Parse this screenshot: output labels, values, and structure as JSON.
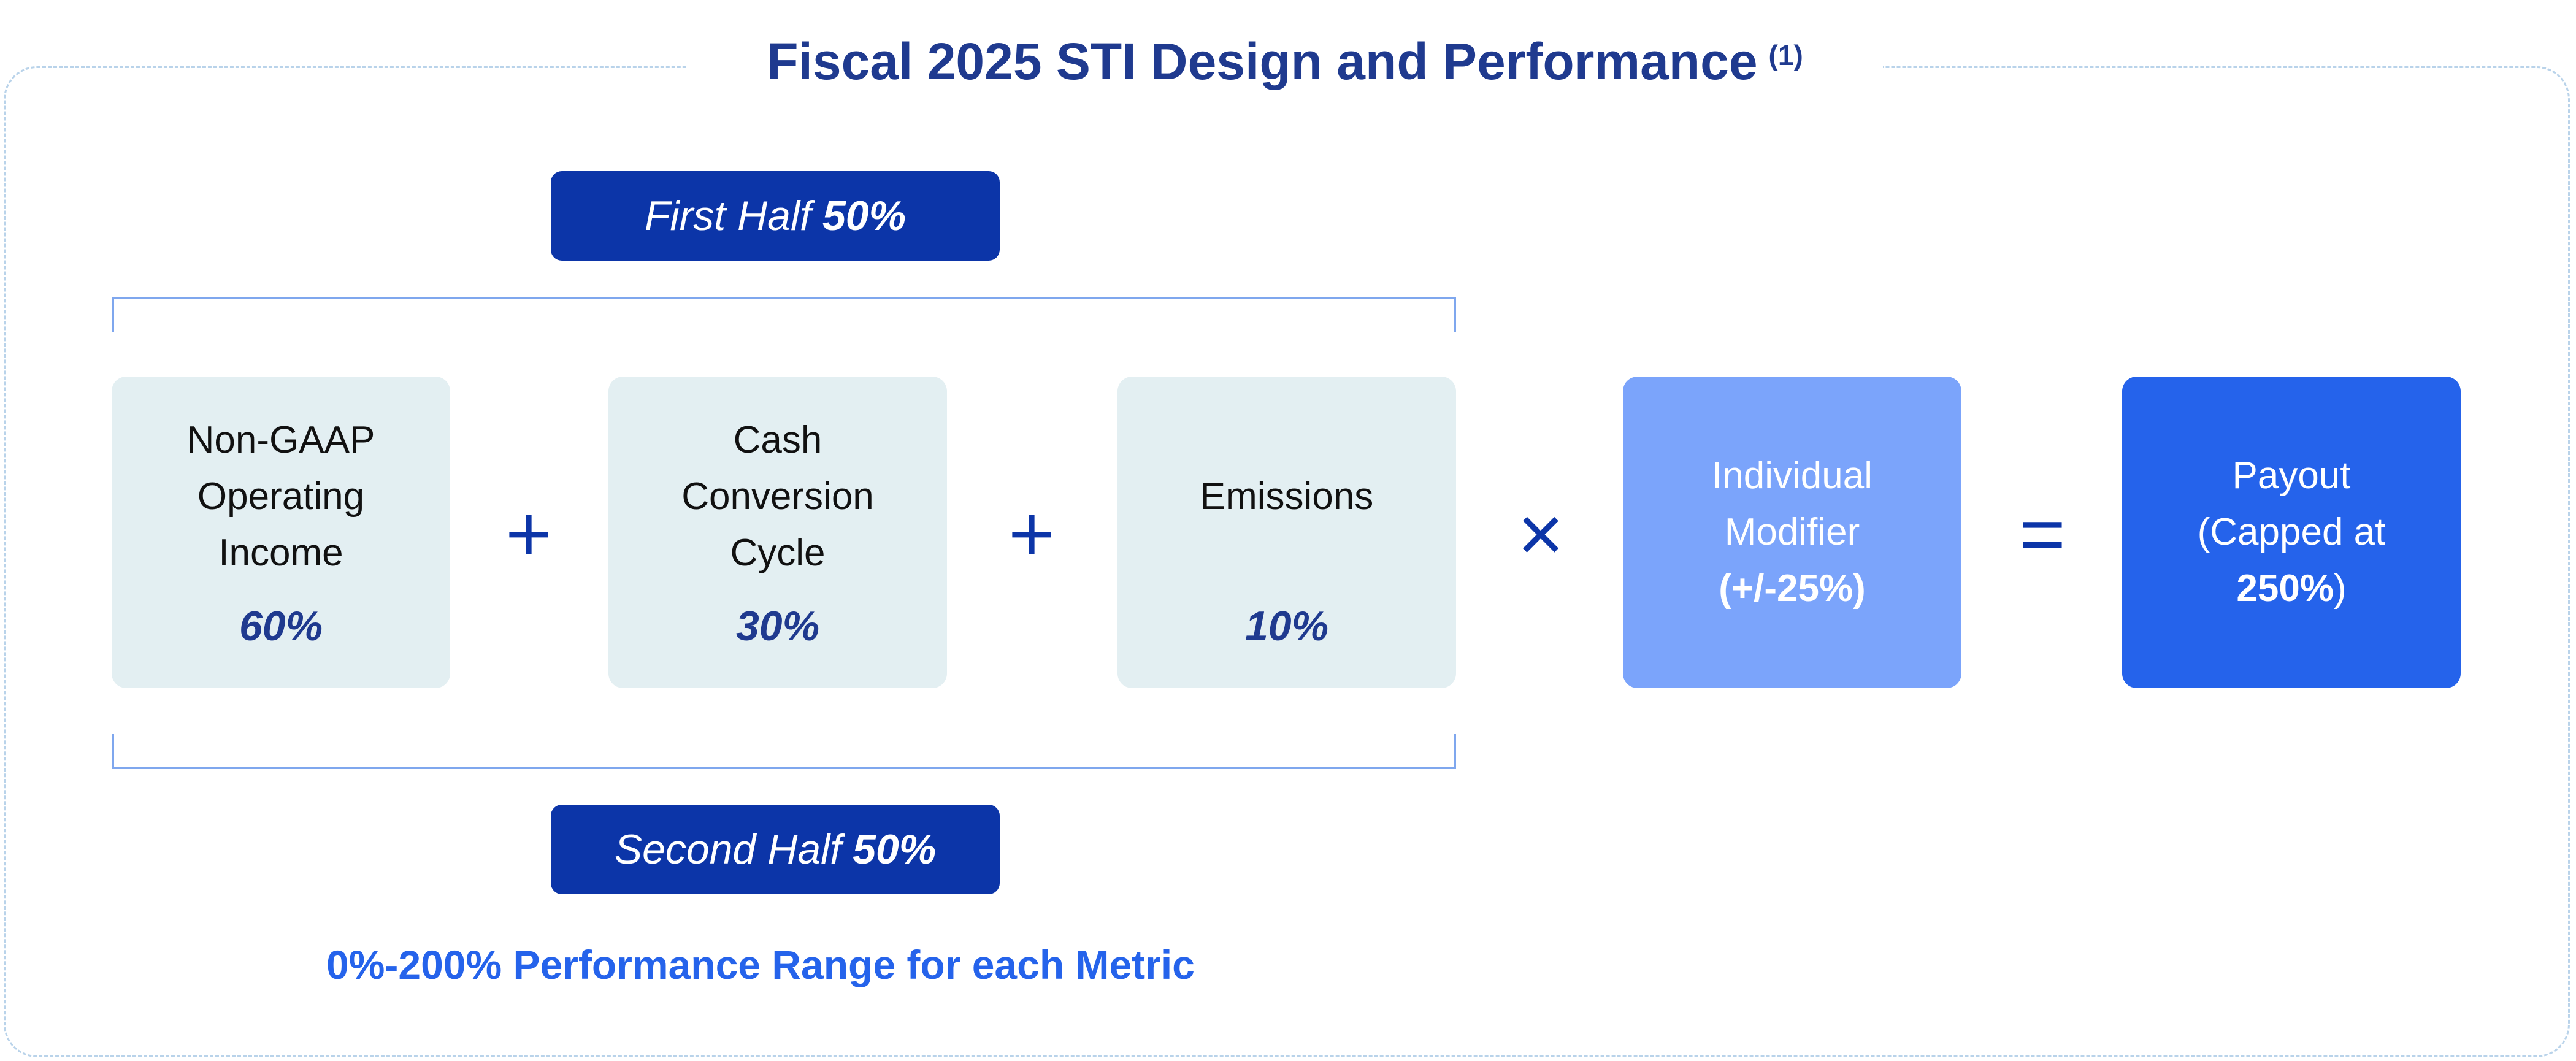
{
  "title": {
    "text": "Fiscal 2025 STI Design and Performance",
    "footnote": "(1)"
  },
  "first_half": {
    "label": "First Half",
    "pct": "50%"
  },
  "second_half": {
    "label": "Second Half",
    "pct": "50%"
  },
  "metrics": [
    {
      "lines": [
        "Non-GAAP",
        "Operating",
        "Income"
      ],
      "weight": "60%"
    },
    {
      "lines": [
        "Cash",
        "Conversion",
        "Cycle"
      ],
      "weight": "30%"
    },
    {
      "lines": [
        "",
        "Emissions",
        ""
      ],
      "weight": "10%"
    }
  ],
  "operators": {
    "plus": "+",
    "times": "×",
    "equals": "="
  },
  "modifier": {
    "line1": "Individual",
    "line2": "Modifier",
    "line3": "(+/-25%)"
  },
  "payout": {
    "line1": "Payout",
    "line2": "(Capped at",
    "line3_value": "250%",
    "line3_close": ")"
  },
  "footer": "0%-200% Performance Range for each Metric",
  "colors": {
    "navy": "#0c35a8",
    "title": "#1f3a8f",
    "metric_bg": "#e3eff2",
    "modifier_bg": "#7ba4fb",
    "payout_bg": "#2563eb",
    "accent_text": "#2563eb",
    "bracket": "#7fa7ee",
    "frame": "#b9d3ea"
  }
}
